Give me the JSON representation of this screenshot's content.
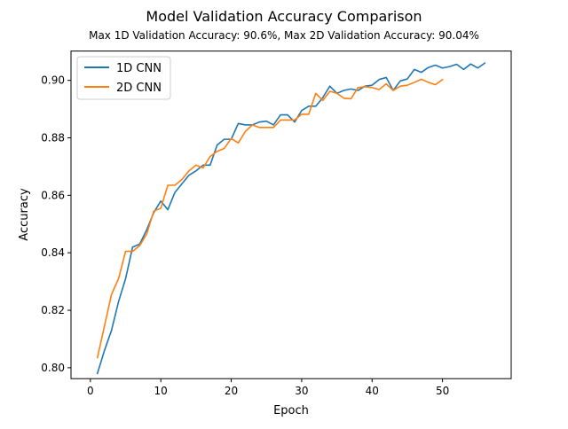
{
  "chart_data": {
    "type": "line",
    "title": "Model Validation Accuracy Comparison",
    "subtitle": "Max 1D Validation Accuracy: 90.6%, Max 2D Validation Accuracy: 90.04%",
    "xlabel": "Epoch",
    "ylabel": "Accuracy",
    "xlim": [
      -2.75,
      59.75
    ],
    "ylim": [
      0.7962,
      0.9102
    ],
    "xticks": [
      0,
      10,
      20,
      30,
      40,
      50
    ],
    "yticks": [
      0.8,
      0.82,
      0.84,
      0.86,
      0.88,
      0.9
    ],
    "ytick_labels": [
      "0.80",
      "0.82",
      "0.84",
      "0.86",
      "0.88",
      "0.90"
    ],
    "grid": false,
    "legend_position": "top-left",
    "series": [
      {
        "name": "1D CNN",
        "color": "#1f77b4",
        "x": [
          1,
          2,
          3,
          4,
          5,
          6,
          7,
          8,
          9,
          10,
          11,
          12,
          13,
          14,
          15,
          16,
          17,
          18,
          19,
          20,
          21,
          22,
          23,
          24,
          25,
          26,
          27,
          28,
          29,
          30,
          31,
          32,
          33,
          34,
          35,
          36,
          37,
          38,
          39,
          40,
          41,
          42,
          43,
          44,
          45,
          46,
          47,
          48,
          49,
          50,
          51,
          52,
          53,
          54,
          55,
          56
        ],
        "values": [
          0.798,
          0.806,
          0.813,
          0.823,
          0.831,
          0.842,
          0.843,
          0.848,
          0.854,
          0.858,
          0.855,
          0.861,
          0.864,
          0.867,
          0.8685,
          0.8705,
          0.8705,
          0.8775,
          0.8795,
          0.8795,
          0.885,
          0.8845,
          0.8845,
          0.8855,
          0.8858,
          0.8845,
          0.888,
          0.888,
          0.8855,
          0.8895,
          0.891,
          0.891,
          0.894,
          0.898,
          0.8955,
          0.8965,
          0.897,
          0.8965,
          0.898,
          0.8983,
          0.9003,
          0.901,
          0.8965,
          0.8998,
          0.9005,
          0.9038,
          0.9028,
          0.9045,
          0.9053,
          0.9043,
          0.9048,
          0.9056,
          0.9038,
          0.9057,
          0.9043,
          0.906
        ]
      },
      {
        "name": "2D CNN",
        "color": "#ff7f0e",
        "x": [
          1,
          2,
          3,
          4,
          5,
          6,
          7,
          8,
          9,
          10,
          11,
          12,
          13,
          14,
          15,
          16,
          17,
          18,
          19,
          20,
          21,
          22,
          23,
          24,
          25,
          26,
          27,
          28,
          29,
          30,
          31,
          32,
          33,
          34,
          35,
          36,
          37,
          38,
          39,
          40,
          41,
          42,
          43,
          44,
          45,
          46,
          47,
          48,
          49,
          50
        ],
        "values": [
          0.8035,
          0.8145,
          0.8255,
          0.831,
          0.8405,
          0.8405,
          0.8425,
          0.8465,
          0.8545,
          0.8555,
          0.8635,
          0.8635,
          0.8655,
          0.8685,
          0.8705,
          0.8695,
          0.8735,
          0.8753,
          0.8763,
          0.8798,
          0.8782,
          0.8822,
          0.8845,
          0.8836,
          0.8836,
          0.8836,
          0.8862,
          0.8862,
          0.8862,
          0.8882,
          0.8882,
          0.8955,
          0.893,
          0.8962,
          0.8955,
          0.8938,
          0.8936,
          0.8975,
          0.8978,
          0.8975,
          0.8968,
          0.8988,
          0.8965,
          0.898,
          0.8983,
          0.8993,
          0.9004,
          0.8993,
          0.8985,
          0.9003
        ]
      }
    ]
  }
}
